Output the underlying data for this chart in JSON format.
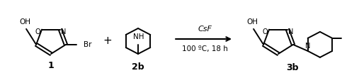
{
  "bg_color": "#ffffff",
  "line_color": "#000000",
  "fig_width": 5.07,
  "fig_height": 1.1,
  "dpi": 100,
  "lw": 1.4,
  "reagent_line1": "CsF",
  "reagent_line2": "100 ºC, 18 h",
  "label1": "1",
  "label2": "2b",
  "label3": "3b"
}
